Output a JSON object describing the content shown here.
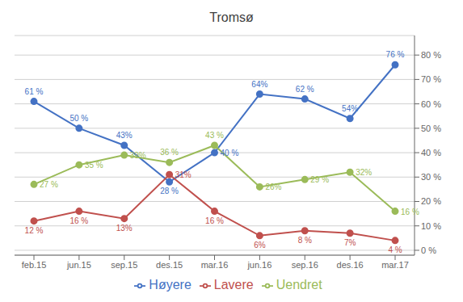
{
  "chart_data": {
    "type": "line",
    "title": "Tromsø",
    "categories": [
      "feb.15",
      "jun.15",
      "sep.15",
      "des.15",
      "mar.16",
      "jun.16",
      "sep.16",
      "des.16",
      "mar.17"
    ],
    "series": [
      {
        "name": "Høyere",
        "color": "#4472C4",
        "marker": "circle",
        "line_style": "solid",
        "values": [
          61,
          50,
          43,
          28,
          40,
          64,
          62,
          54,
          76
        ],
        "value_labels": [
          "61 %",
          "50 %",
          "43%",
          "28 %",
          "40 %",
          "64%",
          "62 %",
          "54%",
          "76 %"
        ]
      },
      {
        "name": "Lavere",
        "color": "#C0504D",
        "marker": "circle",
        "line_style": "solid",
        "values": [
          12,
          16,
          13,
          31,
          16,
          6,
          8,
          7,
          4
        ],
        "value_labels": [
          "12 %",
          "16 %",
          "13%",
          "31%",
          "16 %",
          "6%",
          "8 %",
          "7%",
          "4 %"
        ]
      },
      {
        "name": "Uendret",
        "color": "#9BBB59",
        "marker": "circle",
        "line_style": "solid",
        "values": [
          27,
          35,
          39,
          36,
          43,
          26,
          29,
          32,
          16
        ],
        "value_labels": [
          "27 %",
          "35 %",
          "39%",
          "36 %",
          "43 %",
          "26%",
          "29 %",
          "32%",
          "16 %"
        ]
      }
    ],
    "ylim": [
      -2,
      88
    ],
    "yticks": [
      {
        "value": 0,
        "label": "0 %"
      },
      {
        "value": 10,
        "label": "10 %"
      },
      {
        "value": 20,
        "label": "20 %"
      },
      {
        "value": 30,
        "label": "30 %"
      },
      {
        "value": 40,
        "label": "40 %"
      },
      {
        "value": 50,
        "label": "50 %"
      },
      {
        "value": 60,
        "label": "60 %"
      },
      {
        "value": 70,
        "label": "70 %"
      },
      {
        "value": 80,
        "label": "80 %"
      }
    ],
    "grid": true,
    "legend": "bottom",
    "data_labels": true
  }
}
